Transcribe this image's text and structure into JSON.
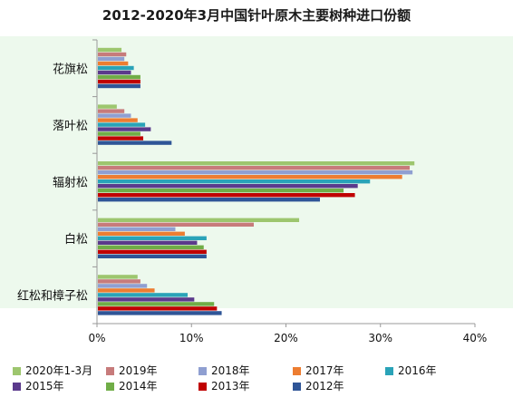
{
  "chart_data": {
    "type": "bar",
    "orientation": "horizontal",
    "title": "2012-2020年3月中国针叶原木主要树种进口份额",
    "xlabel": "",
    "ylabel": "",
    "categories": [
      "花旗松",
      "落叶松",
      "辐射松",
      "白松",
      "红松和樟子松"
    ],
    "x_ticks": [
      "0%",
      "10%",
      "20%",
      "30%",
      "40%"
    ],
    "xlim": [
      0,
      40
    ],
    "grid": false,
    "legend_position": "bottom",
    "series": [
      {
        "name": "2020年1-3月",
        "color": "#9dc66e",
        "values": [
          2.5,
          2.0,
          33.5,
          21.3,
          4.2
        ]
      },
      {
        "name": "2019年",
        "color": "#c77b7b",
        "values": [
          3.0,
          2.8,
          33.0,
          16.5,
          4.5
        ]
      },
      {
        "name": "2018年",
        "color": "#8f9fd1",
        "values": [
          2.8,
          3.5,
          33.3,
          8.2,
          5.2
        ]
      },
      {
        "name": "2017年",
        "color": "#ed7d31",
        "values": [
          3.2,
          4.2,
          32.2,
          9.2,
          6.0
        ]
      },
      {
        "name": "2016年",
        "color": "#2aa3b8",
        "values": [
          3.8,
          5.0,
          28.8,
          11.5,
          9.5
        ]
      },
      {
        "name": "2015年",
        "color": "#5b3a8c",
        "values": [
          3.5,
          5.6,
          27.5,
          10.5,
          10.2
        ]
      },
      {
        "name": "2014年",
        "color": "#70ad47",
        "values": [
          4.5,
          4.5,
          26.0,
          11.2,
          12.3
        ]
      },
      {
        "name": "2013年",
        "color": "#c00000",
        "values": [
          4.5,
          4.8,
          27.2,
          11.5,
          12.6
        ]
      },
      {
        "name": "2012年",
        "color": "#2f5597",
        "values": [
          4.5,
          7.8,
          23.5,
          11.5,
          13.1
        ]
      }
    ]
  }
}
